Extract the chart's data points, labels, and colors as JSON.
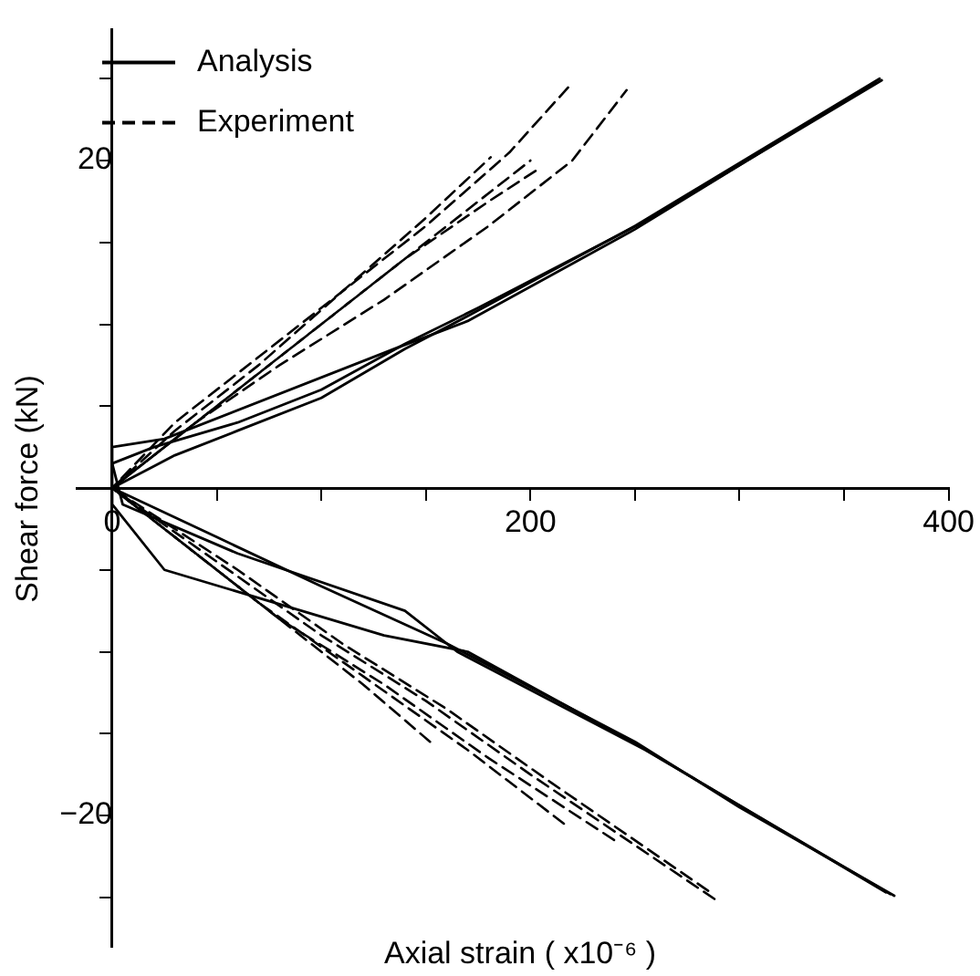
{
  "chart_data": {
    "type": "line",
    "xlabel": "Axial strain ( x10⁻⁶ )",
    "ylabel": "Shear force (kN)",
    "xlim": [
      -17,
      400
    ],
    "ylim": [
      -28,
      28
    ],
    "xticks": [
      {
        "value": 0,
        "label": "0"
      },
      {
        "value": 50,
        "label": null
      },
      {
        "value": 100,
        "label": null
      },
      {
        "value": 150,
        "label": null
      },
      {
        "value": 200,
        "label": "200"
      },
      {
        "value": 250,
        "label": null
      },
      {
        "value": 300,
        "label": null
      },
      {
        "value": 350,
        "label": null
      },
      {
        "value": 400,
        "label": "400"
      }
    ],
    "yticks": [
      {
        "value": -25,
        "label": null
      },
      {
        "value": -20,
        "label": "−20"
      },
      {
        "value": -15,
        "label": null
      },
      {
        "value": -10,
        "label": null
      },
      {
        "value": -5,
        "label": null
      },
      {
        "value": 5,
        "label": null
      },
      {
        "value": 10,
        "label": null
      },
      {
        "value": 15,
        "label": null
      },
      {
        "value": 20,
        "label": "20"
      },
      {
        "value": 25,
        "label": null
      }
    ],
    "grid": false,
    "legend": "top left",
    "marker": "none",
    "series": [
      {
        "name": "Analysis",
        "color": "#000000",
        "line_style": "solid",
        "x": [
          374,
          300,
          250,
          160,
          100,
          50,
          0,
          30,
          60,
          100,
          140,
          170,
          250,
          367
        ],
        "values": [
          -24.9,
          -19.5,
          -15.5,
          -9.5,
          -6,
          -3,
          0,
          2,
          3.5,
          5.5,
          8.5,
          10.5,
          16,
          25
        ]
      },
      {
        "color": "#000000",
        "line_style": "solid",
        "x": [
          370,
          250,
          170,
          130,
          25,
          0,
          0,
          25,
          135,
          170,
          250,
          365
        ],
        "values": [
          -24.7,
          -15.6,
          -10,
          -9,
          -5,
          -1,
          2.5,
          3,
          8.5,
          10.2,
          15.8,
          24.8
        ]
      },
      {
        "color": "#000000",
        "line_style": "solid",
        "x": [
          372,
          255,
          165,
          140,
          60,
          5,
          0,
          20,
          60,
          100,
          140,
          175,
          255,
          368
        ],
        "values": [
          -24.8,
          -16,
          -10,
          -7.5,
          -4,
          -1,
          1.5,
          2.5,
          4,
          6,
          8.8,
          11,
          16.3,
          24.9
        ]
      },
      {
        "name": "Experiment",
        "color": "#000000",
        "line_style": "dashed",
        "x": [
          288,
          200,
          150,
          100,
          50,
          0,
          30,
          60,
          100,
          150,
          190,
          219
        ],
        "values": [
          -25.1,
          -17.5,
          -13,
          -9,
          -4.5,
          0,
          4,
          7,
          11,
          16,
          20.5,
          24.6
        ]
      },
      {
        "color": "#000000",
        "line_style": "dashed",
        "x": [
          285,
          210,
          160,
          110,
          60,
          0,
          40,
          80,
          130,
          180,
          220,
          246
        ],
        "values": [
          -24.6,
          -18,
          -13.5,
          -9.5,
          -5,
          0,
          4,
          7.5,
          11.5,
          16,
          20,
          24.3
        ]
      },
      {
        "color": "#000000",
        "line_style": "dashed",
        "x": [
          216,
          170,
          120,
          70,
          30,
          0,
          30,
          70,
          110,
          150,
          181
        ],
        "values": [
          -20.5,
          -16,
          -11.5,
          -7,
          -3,
          0,
          3.5,
          7.5,
          12,
          16.5,
          20.2
        ]
      },
      {
        "color": "#000000",
        "line_style": "dashed",
        "x": [
          152,
          120,
          80,
          40,
          0,
          40,
          90,
          140,
          180,
          204
        ],
        "values": [
          -15.5,
          -12,
          -8,
          -4,
          0,
          4,
          9,
          14,
          17.5,
          19.5
        ]
      },
      {
        "color": "#000000",
        "line_style": "dashed",
        "x": [
          240,
          180,
          130,
          80,
          40,
          0,
          30,
          70,
          120,
          160,
          200
        ],
        "values": [
          -21.5,
          -16.5,
          -12,
          -8,
          -4,
          0,
          3,
          7,
          12,
          16,
          20
        ]
      }
    ]
  }
}
